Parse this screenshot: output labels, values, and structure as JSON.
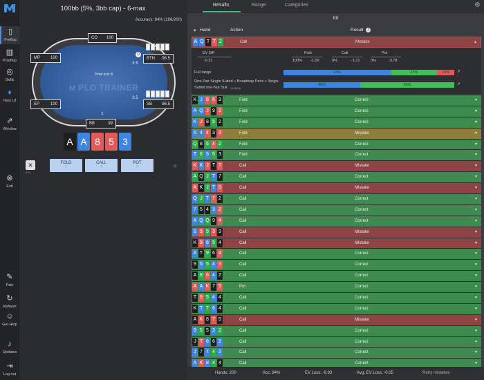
{
  "sidebar": {
    "items": [
      {
        "label": "Preflop",
        "icon": "preflop-icon"
      },
      {
        "label": "Postflop",
        "icon": "postflop-icon"
      },
      {
        "label": "Skills",
        "icon": "skills-icon"
      },
      {
        "label": "New UI",
        "icon": "flame-icon"
      },
      {
        "label": "Window",
        "icon": "external-window-icon"
      },
      {
        "label": "Exit",
        "icon": "exit-icon"
      },
      {
        "label": "Pale",
        "icon": "brush-icon"
      },
      {
        "label": "Refresh",
        "icon": "refresh-icon"
      },
      {
        "label": "Get Help",
        "icon": "discord-icon"
      },
      {
        "label": "Updates",
        "icon": "bell-icon"
      },
      {
        "label": "Log out",
        "icon": "logout-icon"
      }
    ]
  },
  "left": {
    "title": "100bb (5%, 3bb cap) - 6-max",
    "accuracy": "Accuracy: 84% (168/200)",
    "total_pot": "Total pot: 8",
    "logo": "PLO TRAINER",
    "seats": {
      "co": {
        "name": "CO",
        "stack": "100"
      },
      "mp": {
        "name": "MP",
        "stack": "100"
      },
      "btn": {
        "name": "BTN",
        "stack": "96.5"
      },
      "ep": {
        "name": "EP",
        "stack": "100"
      },
      "sb": {
        "name": "SB",
        "stack": "96.5"
      },
      "bb": {
        "name": "BB",
        "stack": "99"
      }
    },
    "bets": {
      "btn": "3.5",
      "sb": "3.5",
      "bb": "1"
    },
    "dealer_button": "D",
    "hero_cards": [
      {
        "rank": "A",
        "color": "#1f1f1f"
      },
      {
        "rank": "A",
        "color": "#3d86e0"
      },
      {
        "rank": "8",
        "color": "#e05a5a"
      },
      {
        "rank": "5",
        "color": "#e05a5a"
      },
      {
        "rank": "3",
        "color": "#3d86e0"
      }
    ],
    "close_key": "ESC",
    "actions": [
      {
        "label": "FOLD",
        "key": "1"
      },
      {
        "label": "CALL",
        "key": "2"
      },
      {
        "label": "POT",
        "key": "3"
      }
    ]
  },
  "tabs": [
    "Results",
    "Range",
    "Categories"
  ],
  "position_label": "BB",
  "list_header": {
    "hand": "Hand",
    "action": "Action",
    "result": "Result"
  },
  "selected": {
    "cards": [
      {
        "rank": "A",
        "color": "#3d86e0"
      },
      {
        "rank": "Q",
        "color": "#3d86e0"
      },
      {
        "rank": "T",
        "color": "#1f1f1f"
      },
      {
        "rank": "T",
        "color": "#e05a5a"
      },
      {
        "rank": "2",
        "color": "#2fa84f"
      }
    ],
    "action": "Call",
    "result": "Mistake",
    "ev_diff_label": "EV Diff",
    "ev_diff": "-0.31",
    "fold_label": "Fold",
    "fold_freq": "100%",
    "fold_ev": "-1.00",
    "call_label": "Call",
    "call_freq": "0%",
    "call_ev": "-1.31",
    "pot_label": "Pot",
    "pot_freq": "0%",
    "pot_ev": "-3.78",
    "full_range_label": "Full range",
    "full_range": {
      "blue": 63,
      "green": 27,
      "red": 10
    },
    "full_range_text": {
      "blue": "63%",
      "green": "27%",
      "red": "10%"
    },
    "category_label_1": "One Pair Single Suited » Broadway Pairs » Single",
    "category_label_2": "Suited non-Nut Suit",
    "category_pct": "(2.55%)",
    "category": {
      "blue": 45,
      "green": 55
    },
    "category_text": {
      "blue": "45%",
      "green": "55%"
    }
  },
  "rows": [
    {
      "cards": [
        [
          "K",
          "#1f1f1f"
        ],
        [
          "J",
          "#3d86e0"
        ],
        [
          "8",
          "#e05a5a"
        ],
        [
          "6",
          "#e05a5a"
        ],
        [
          "3",
          "#1f1f1f"
        ]
      ],
      "action": "Fold",
      "result": "Correct"
    },
    {
      "cards": [
        [
          "A",
          "#3d86e0"
        ],
        [
          "Q",
          "#3d86e0"
        ],
        [
          "J",
          "#e05a5a"
        ],
        [
          "9",
          "#1f1f1f"
        ],
        [
          "2",
          "#e05a5a"
        ]
      ],
      "action": "Fold",
      "result": "Correct"
    },
    {
      "cards": [
        [
          "K",
          "#3d86e0"
        ],
        [
          "J",
          "#e05a5a"
        ],
        [
          "8",
          "#1f1f1f"
        ],
        [
          "5",
          "#2fa84f"
        ],
        [
          "2",
          "#1f1f1f"
        ]
      ],
      "action": "Fold",
      "result": "Correct"
    },
    {
      "cards": [
        [
          "5",
          "#3d86e0"
        ],
        [
          "4",
          "#3d86e0"
        ],
        [
          "4",
          "#e05a5a"
        ],
        [
          "3",
          "#1f1f1f"
        ],
        [
          "3",
          "#e05a5a"
        ]
      ],
      "action": "Fold",
      "result": "Mistake"
    },
    {
      "cards": [
        [
          "Q",
          "#2fa84f"
        ],
        [
          "8",
          "#1f1f1f"
        ],
        [
          "5",
          "#2fa84f"
        ],
        [
          "4",
          "#e05a5a"
        ],
        [
          "2",
          "#2fa84f"
        ]
      ],
      "action": "Fold",
      "result": "Correct"
    },
    {
      "cards": [
        [
          "T",
          "#3d86e0"
        ],
        [
          "6",
          "#2fa84f"
        ],
        [
          "5",
          "#3d86e0"
        ],
        [
          "5",
          "#2fa84f"
        ],
        [
          "3",
          "#1f1f1f"
        ]
      ],
      "action": "Fold",
      "result": "Correct"
    },
    {
      "cards": [
        [
          "K",
          "#e05a5a"
        ],
        [
          "K",
          "#3d86e0"
        ],
        [
          "J",
          "#e05a5a"
        ],
        [
          "T",
          "#1f1f1f"
        ],
        [
          "7",
          "#e05a5a"
        ]
      ],
      "action": "Call",
      "result": "Mistake"
    },
    {
      "cards": [
        [
          "A",
          "#2fa84f"
        ],
        [
          "Q",
          "#1f1f1f"
        ],
        [
          "J",
          "#2fa84f"
        ],
        [
          "T",
          "#3d86e0"
        ],
        [
          "7",
          "#1f1f1f"
        ]
      ],
      "action": "Call",
      "result": "Correct"
    },
    {
      "cards": [
        [
          "A",
          "#e05a5a"
        ],
        [
          "K",
          "#1f1f1f"
        ],
        [
          "J",
          "#2fa84f"
        ],
        [
          "T",
          "#3d86e0"
        ],
        [
          "5",
          "#e05a5a"
        ]
      ],
      "action": "Call",
      "result": "Mistake"
    },
    {
      "cards": [
        [
          "Q",
          "#3d86e0"
        ],
        [
          "J",
          "#2fa84f"
        ],
        [
          "T",
          "#3d86e0"
        ],
        [
          "7",
          "#e05a5a"
        ],
        [
          "2",
          "#1f1f1f"
        ]
      ],
      "action": "Call",
      "result": "Correct"
    },
    {
      "cards": [
        [
          "7",
          "#3d86e0"
        ],
        [
          "5",
          "#1f1f1f"
        ],
        [
          "4",
          "#1f1f1f"
        ],
        [
          "3",
          "#3d86e0"
        ],
        [
          "2",
          "#e05a5a"
        ]
      ],
      "action": "Call",
      "result": "Correct"
    },
    {
      "cards": [
        [
          "A",
          "#3d86e0"
        ],
        [
          "Q",
          "#3d86e0"
        ],
        [
          "Q",
          "#2fa84f"
        ],
        [
          "9",
          "#1f1f1f"
        ],
        [
          "4",
          "#e05a5a"
        ]
      ],
      "action": "Call",
      "result": "Correct"
    },
    {
      "cards": [
        [
          "9",
          "#3d86e0"
        ],
        [
          "5",
          "#e05a5a"
        ],
        [
          "5",
          "#2fa84f"
        ],
        [
          "3",
          "#e05a5a"
        ],
        [
          "3",
          "#1f1f1f"
        ]
      ],
      "action": "Call",
      "result": "Mistake"
    },
    {
      "cards": [
        [
          "K",
          "#1f1f1f"
        ],
        [
          "9",
          "#e05a5a"
        ],
        [
          "6",
          "#3d86e0"
        ],
        [
          "5",
          "#2fa84f"
        ],
        [
          "4",
          "#1f1f1f"
        ]
      ],
      "action": "Call",
      "result": "Mistake"
    },
    {
      "cards": [
        [
          "A",
          "#3d86e0"
        ],
        [
          "T",
          "#1f1f1f"
        ],
        [
          "9",
          "#2fa84f"
        ],
        [
          "6",
          "#1f1f1f"
        ],
        [
          "4",
          "#e05a5a"
        ]
      ],
      "action": "Call",
      "result": "Correct"
    },
    {
      "cards": [
        [
          "9",
          "#1f1f1f"
        ],
        [
          "6",
          "#3d86e0"
        ],
        [
          "5",
          "#2fa84f"
        ],
        [
          "4",
          "#3d86e0"
        ],
        [
          "3",
          "#e05a5a"
        ]
      ],
      "action": "Call",
      "result": "Correct"
    },
    {
      "cards": [
        [
          "A",
          "#1f1f1f"
        ],
        [
          "8",
          "#2fa84f"
        ],
        [
          "6",
          "#e05a5a"
        ],
        [
          "4",
          "#3d86e0"
        ],
        [
          "2",
          "#1f1f1f"
        ]
      ],
      "action": "Call",
      "result": "Correct"
    },
    {
      "cards": [
        [
          "A",
          "#e05a5a"
        ],
        [
          "A",
          "#3d86e0"
        ],
        [
          "K",
          "#e05a5a"
        ],
        [
          "7",
          "#1f1f1f"
        ],
        [
          "5",
          "#e05a5a"
        ]
      ],
      "action": "Pot",
      "result": "Correct"
    },
    {
      "cards": [
        [
          "T",
          "#1f1f1f"
        ],
        [
          "9",
          "#e05a5a"
        ],
        [
          "5",
          "#2fa84f"
        ],
        [
          "4",
          "#3d86e0"
        ],
        [
          "4",
          "#1f1f1f"
        ]
      ],
      "action": "Call",
      "result": "Correct"
    },
    {
      "cards": [
        [
          "K",
          "#1f1f1f"
        ],
        [
          "T",
          "#3d86e0"
        ],
        [
          "T",
          "#2fa84f"
        ],
        [
          "6",
          "#3d86e0"
        ],
        [
          "4",
          "#1f1f1f"
        ]
      ],
      "action": "Call",
      "result": "Correct"
    },
    {
      "cards": [
        [
          "A",
          "#1f1f1f"
        ],
        [
          "K",
          "#e05a5a"
        ],
        [
          "8",
          "#1f1f1f"
        ],
        [
          "7",
          "#e05a5a"
        ],
        [
          "5",
          "#1f1f1f"
        ]
      ],
      "action": "Call",
      "result": "Mistake"
    },
    {
      "cards": [
        [
          "9",
          "#3d86e0"
        ],
        [
          "5",
          "#2fa84f"
        ],
        [
          "5",
          "#1f1f1f"
        ],
        [
          "3",
          "#3d86e0"
        ],
        [
          "2",
          "#2fa84f"
        ]
      ],
      "action": "Call",
      "result": "Correct"
    },
    {
      "cards": [
        [
          "J",
          "#1f1f1f"
        ],
        [
          "T",
          "#e05a5a"
        ],
        [
          "6",
          "#3d86e0"
        ],
        [
          "6",
          "#1f1f1f"
        ],
        [
          "2",
          "#3d86e0"
        ]
      ],
      "action": "Call",
      "result": "Correct"
    },
    {
      "cards": [
        [
          "J",
          "#3d86e0"
        ],
        [
          "7",
          "#1f1f1f"
        ],
        [
          "7",
          "#3d86e0"
        ],
        [
          "4",
          "#2fa84f"
        ],
        [
          "2",
          "#3d86e0"
        ]
      ],
      "action": "Call",
      "result": "Correct"
    },
    {
      "cards": [
        [
          "A",
          "#3d86e0"
        ],
        [
          "K",
          "#e05a5a"
        ],
        [
          "8",
          "#3d86e0"
        ],
        [
          "4",
          "#2fa84f"
        ],
        [
          "4",
          "#1f1f1f"
        ]
      ],
      "action": "Call",
      "result": "Correct"
    }
  ],
  "row_colors": {
    "Correct": "#3f8a4f",
    "Mistake_fold": "#8d7e3c",
    "Mistake_call": "#8e4444"
  },
  "footer": {
    "hands": "Hands: 200",
    "acc": "Acc: 84%",
    "ev_loss": "EV Loss: -9.93",
    "avg_ev_loss": "Avg. EV Loss: -0.05",
    "retry": "Retry mistakes"
  }
}
